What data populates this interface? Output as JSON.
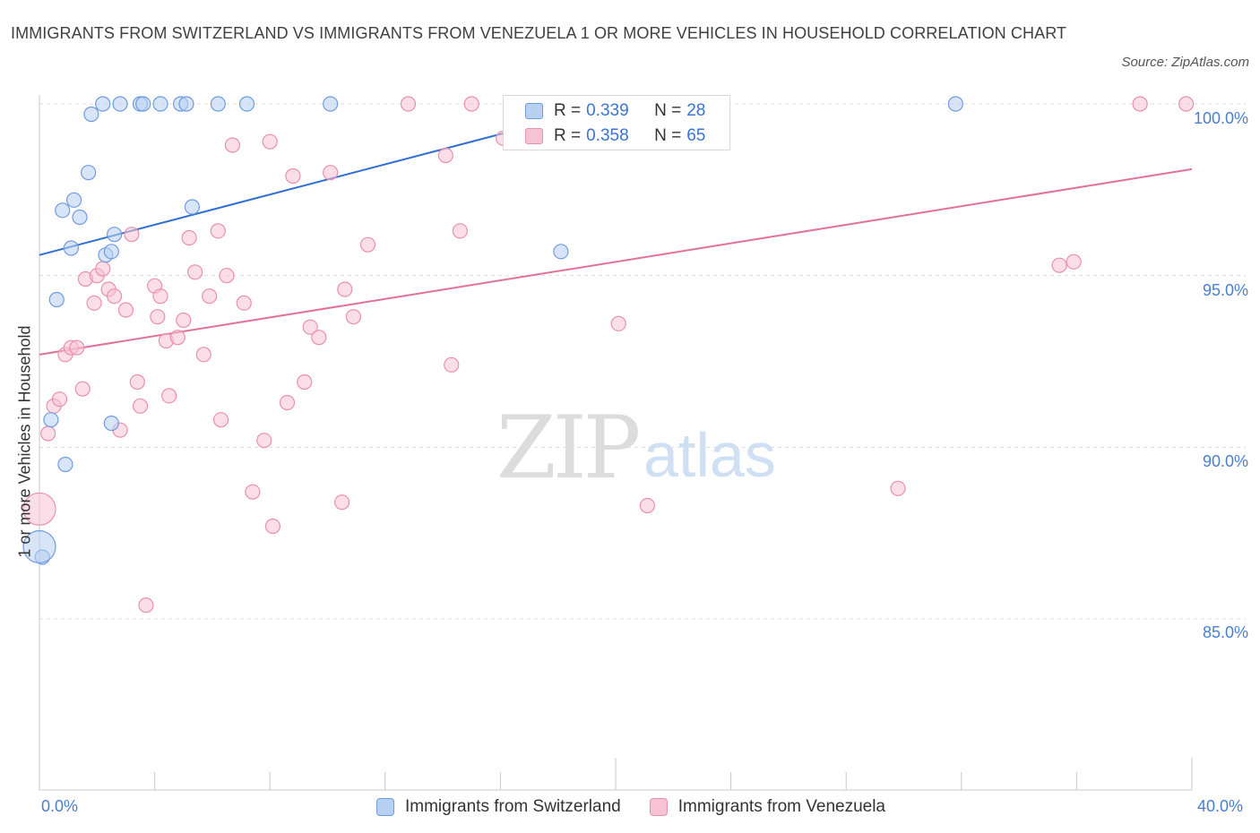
{
  "title": "IMMIGRANTS FROM SWITZERLAND VS IMMIGRANTS FROM VENEZUELA 1 OR MORE VEHICLES IN HOUSEHOLD CORRELATION CHART",
  "source": "Source: ZipAtlas.com",
  "watermark": {
    "zip": "ZIP",
    "atlas": "atlas"
  },
  "legend": {
    "switzerland": {
      "r_label": "R = ",
      "r_value": "0.339",
      "n_label": "N = ",
      "n_value": "28"
    },
    "venezuela": {
      "r_label": "R = ",
      "r_value": "0.358",
      "n_label": "N = ",
      "n_value": "65"
    }
  },
  "colors": {
    "switzerland_fill": "#b8d0f2",
    "switzerland_stroke": "#6f9be0",
    "switzerland_line": "#2f6fd0",
    "venezuela_fill": "#f7c3d3",
    "venezuela_stroke": "#ea8fae",
    "venezuela_line": "#e2709a",
    "grid": "#dddddd",
    "axis_text": "#4a7fd0"
  },
  "chart_data": {
    "type": "scatter",
    "title": "IMMIGRANTS FROM SWITZERLAND VS IMMIGRANTS FROM VENEZUELA 1 OR MORE VEHICLES IN HOUSEHOLD CORRELATION CHART",
    "xlabel": "",
    "ylabel": "1 or more Vehicles in Household",
    "xlim": [
      0,
      40
    ],
    "ylim": [
      80.5,
      100.5
    ],
    "x_tick_labels": [
      "0.0%",
      "40.0%"
    ],
    "y_ticks": [
      85,
      90,
      95,
      100
    ],
    "y_tick_labels": [
      "85.0%",
      "90.0%",
      "95.0%",
      "100.0%"
    ],
    "grid": true,
    "legend_position": "top-center",
    "series": [
      {
        "name": "Immigrants from Switzerland",
        "points": [
          [
            0.1,
            86.8
          ],
          [
            0.4,
            90.8
          ],
          [
            0.6,
            94.3
          ],
          [
            0.8,
            96.9
          ],
          [
            0.9,
            89.5
          ],
          [
            1.1,
            95.8
          ],
          [
            1.2,
            97.2
          ],
          [
            1.4,
            96.7
          ],
          [
            1.7,
            98.0
          ],
          [
            1.8,
            99.7
          ],
          [
            2.2,
            100.0
          ],
          [
            2.3,
            95.6
          ],
          [
            2.5,
            95.7
          ],
          [
            2.5,
            90.7
          ],
          [
            2.6,
            96.2
          ],
          [
            2.8,
            100.0
          ],
          [
            3.5,
            100.0
          ],
          [
            3.6,
            100.0
          ],
          [
            4.2,
            100.0
          ],
          [
            4.9,
            100.0
          ],
          [
            5.1,
            100.0
          ],
          [
            5.3,
            97.0
          ],
          [
            6.2,
            100.0
          ],
          [
            7.2,
            100.0
          ],
          [
            10.1,
            100.0
          ],
          [
            18.1,
            95.7
          ],
          [
            31.8,
            100.0
          ],
          [
            0.0,
            87.1
          ]
        ],
        "trend": [
          [
            0.0,
            95.6
          ],
          [
            20.0,
            100.0
          ]
        ]
      },
      {
        "name": "Immigrants from Venezuela",
        "points": [
          [
            0.0,
            88.2
          ],
          [
            0.3,
            90.4
          ],
          [
            0.5,
            91.2
          ],
          [
            0.7,
            91.4
          ],
          [
            0.9,
            92.7
          ],
          [
            1.1,
            92.9
          ],
          [
            1.3,
            92.9
          ],
          [
            1.5,
            91.7
          ],
          [
            1.6,
            94.9
          ],
          [
            1.9,
            94.2
          ],
          [
            2.0,
            95.0
          ],
          [
            2.2,
            95.2
          ],
          [
            2.4,
            94.6
          ],
          [
            2.6,
            94.4
          ],
          [
            2.8,
            90.5
          ],
          [
            3.0,
            94.0
          ],
          [
            3.2,
            96.2
          ],
          [
            3.4,
            91.9
          ],
          [
            3.5,
            91.2
          ],
          [
            3.7,
            85.4
          ],
          [
            4.0,
            94.7
          ],
          [
            4.1,
            93.8
          ],
          [
            4.2,
            94.4
          ],
          [
            4.4,
            93.1
          ],
          [
            4.8,
            93.2
          ],
          [
            4.5,
            91.5
          ],
          [
            5.0,
            93.7
          ],
          [
            5.2,
            96.1
          ],
          [
            5.4,
            95.1
          ],
          [
            5.7,
            92.7
          ],
          [
            5.9,
            94.4
          ],
          [
            6.2,
            96.3
          ],
          [
            6.3,
            90.8
          ],
          [
            6.5,
            95.0
          ],
          [
            6.7,
            98.8
          ],
          [
            7.1,
            94.2
          ],
          [
            7.4,
            88.7
          ],
          [
            7.8,
            90.2
          ],
          [
            8.0,
            98.9
          ],
          [
            8.1,
            87.7
          ],
          [
            8.6,
            91.3
          ],
          [
            8.8,
            97.9
          ],
          [
            9.2,
            91.9
          ],
          [
            9.4,
            93.5
          ],
          [
            9.7,
            93.2
          ],
          [
            10.1,
            98.0
          ],
          [
            10.5,
            88.4
          ],
          [
            10.6,
            94.6
          ],
          [
            10.9,
            93.8
          ],
          [
            11.4,
            95.9
          ],
          [
            12.8,
            100.0
          ],
          [
            14.1,
            98.5
          ],
          [
            14.3,
            92.4
          ],
          [
            14.6,
            96.3
          ],
          [
            15.0,
            100.0
          ],
          [
            16.1,
            99.0
          ],
          [
            17.3,
            100.0
          ],
          [
            20.1,
            93.6
          ],
          [
            21.1,
            88.3
          ],
          [
            22.5,
            100.0
          ],
          [
            29.8,
            88.8
          ],
          [
            35.4,
            95.3
          ],
          [
            35.9,
            95.4
          ],
          [
            38.2,
            100.0
          ],
          [
            39.8,
            100.0
          ]
        ],
        "trend": [
          [
            0.0,
            92.7
          ],
          [
            40.0,
            98.1
          ]
        ]
      }
    ]
  }
}
